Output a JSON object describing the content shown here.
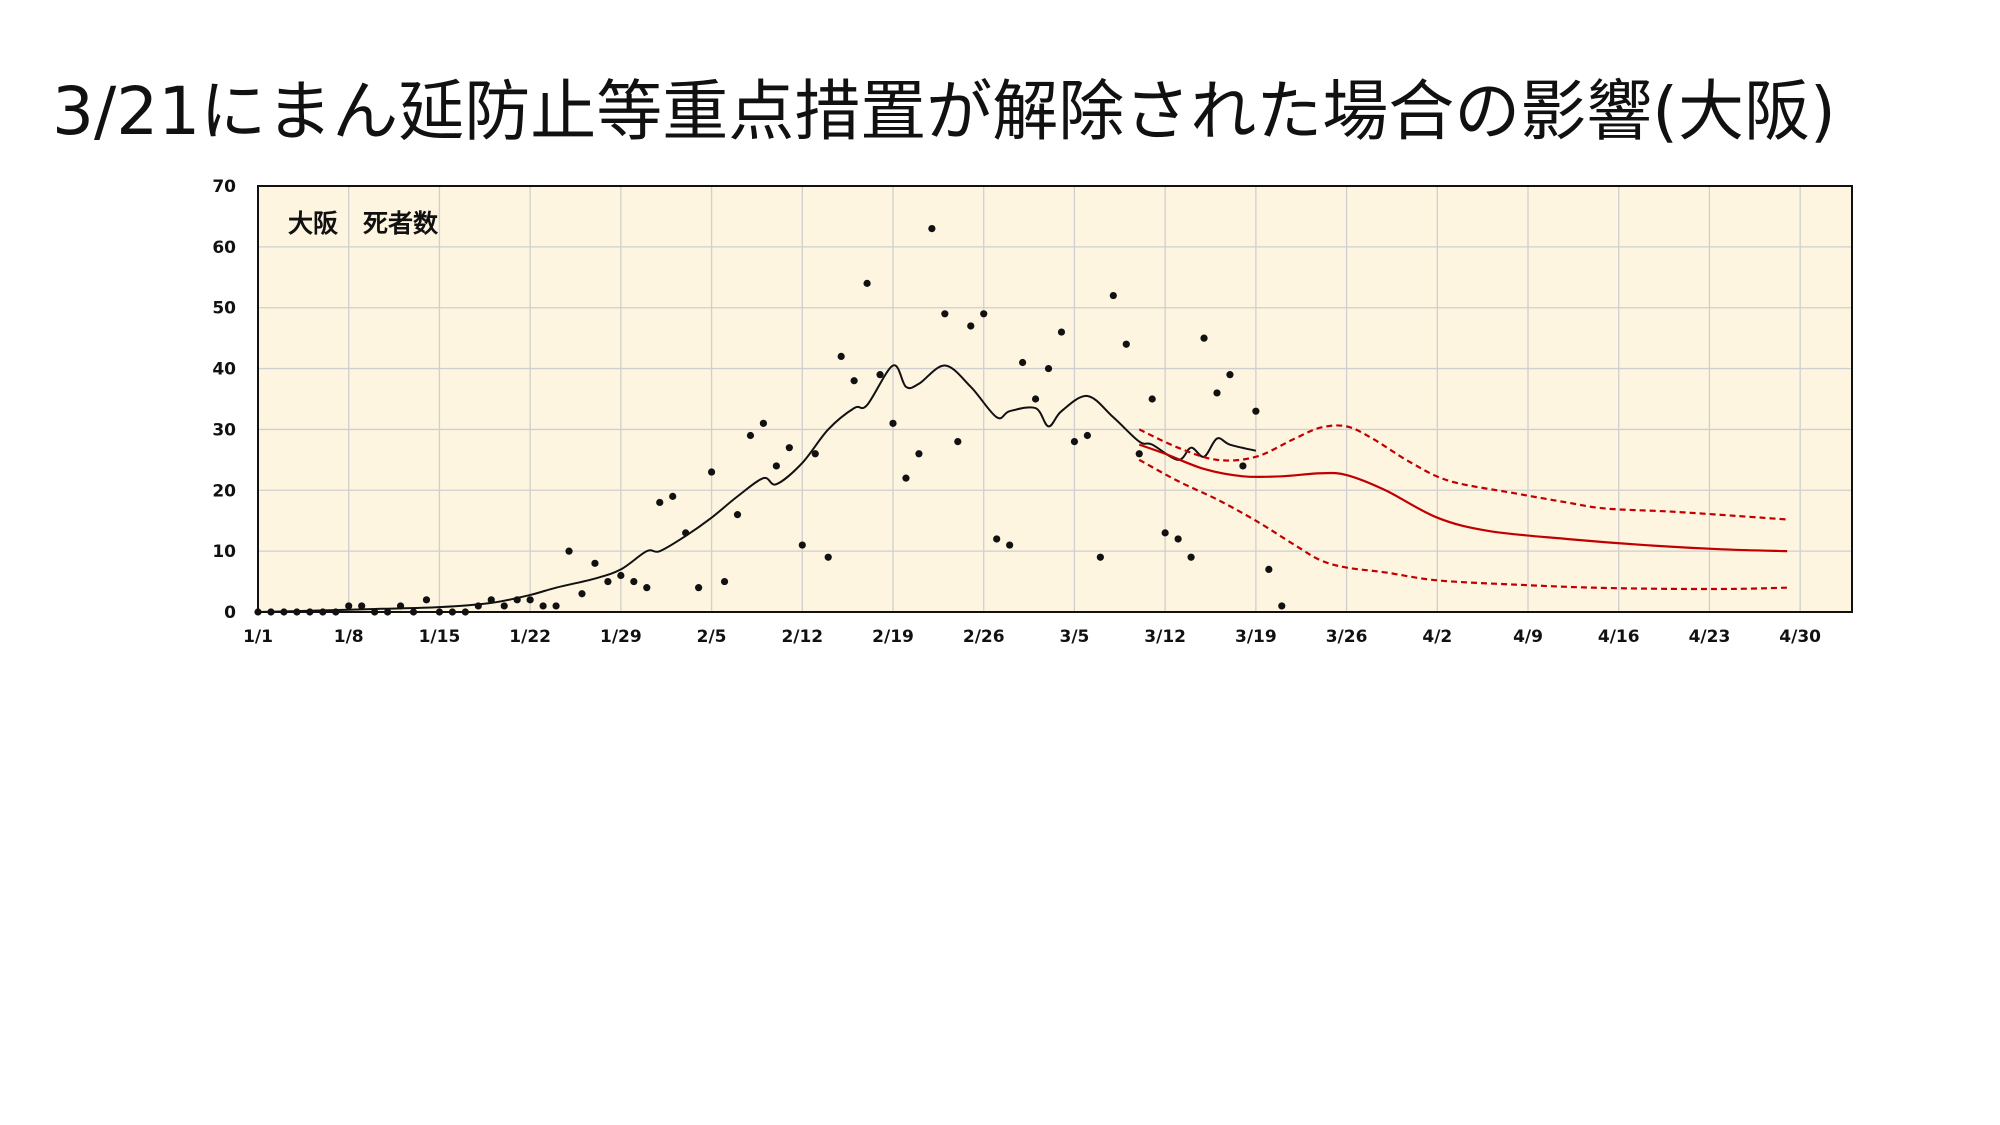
{
  "title": "3/21にまん延防止等重点措置が解除された場合の影響(大阪)",
  "chart_data": {
    "type": "scatter",
    "title": "",
    "inset_label": "大阪　死者数",
    "xlabel": "",
    "ylabel": "",
    "x_range": [
      "2021-01-01",
      "2021-05-04"
    ],
    "ylim": [
      0,
      70
    ],
    "y_ticks": [
      0,
      10,
      20,
      30,
      40,
      50,
      60,
      70
    ],
    "x_tick_labels": [
      "1/1",
      "1/8",
      "1/15",
      "1/22",
      "1/29",
      "2/5",
      "2/12",
      "2/19",
      "2/26",
      "3/5",
      "3/12",
      "3/19",
      "3/26",
      "4/2",
      "4/9",
      "4/16",
      "4/23",
      "4/30"
    ],
    "x_tick_dates": [
      "2021-01-01",
      "2021-01-08",
      "2021-01-15",
      "2021-01-22",
      "2021-01-29",
      "2021-02-05",
      "2021-02-12",
      "2021-02-19",
      "2021-02-26",
      "2021-03-05",
      "2021-03-12",
      "2021-03-19",
      "2021-03-26",
      "2021-04-02",
      "2021-04-09",
      "2021-04-16",
      "2021-04-23",
      "2021-04-30"
    ],
    "grid": true,
    "colors": {
      "background": "#fdf5e0",
      "observed": "#111111",
      "projection": "#c00000",
      "grid": "#cfcfcf"
    },
    "series": [
      {
        "kind": "points",
        "x": [
          "2021-01-01",
          "2021-01-02",
          "2021-01-03",
          "2021-01-04",
          "2021-01-05",
          "2021-01-06",
          "2021-01-07",
          "2021-01-08",
          "2021-01-09",
          "2021-01-10",
          "2021-01-11",
          "2021-01-12",
          "2021-01-13",
          "2021-01-14",
          "2021-01-15",
          "2021-01-16",
          "2021-01-17",
          "2021-01-18",
          "2021-01-19",
          "2021-01-20",
          "2021-01-21",
          "2021-01-22",
          "2021-01-23",
          "2021-01-24",
          "2021-01-25",
          "2021-01-26",
          "2021-01-27",
          "2021-01-28",
          "2021-01-29",
          "2021-01-30",
          "2021-01-31",
          "2021-02-01",
          "2021-02-02",
          "2021-02-03",
          "2021-02-04",
          "2021-02-05",
          "2021-02-06",
          "2021-02-07",
          "2021-02-08",
          "2021-02-09",
          "2021-02-10",
          "2021-02-11",
          "2021-02-12",
          "2021-02-13",
          "2021-02-14",
          "2021-02-15",
          "2021-02-16",
          "2021-02-17",
          "2021-02-18",
          "2021-02-19",
          "2021-02-20",
          "2021-02-21",
          "2021-02-22",
          "2021-02-23",
          "2021-02-24",
          "2021-02-25",
          "2021-02-26",
          "2021-02-27",
          "2021-02-28",
          "2021-03-01",
          "2021-03-02",
          "2021-03-03",
          "2021-03-04",
          "2021-03-05",
          "2021-03-06",
          "2021-03-07",
          "2021-03-08",
          "2021-03-09",
          "2021-03-10",
          "2021-03-11",
          "2021-03-12",
          "2021-03-13",
          "2021-03-14",
          "2021-03-15",
          "2021-03-16",
          "2021-03-17",
          "2021-03-18",
          "2021-03-19",
          "2021-03-20",
          "2021-03-21"
        ],
        "y": [
          0,
          0,
          0,
          0,
          0,
          0,
          0,
          1,
          1,
          0,
          0,
          1,
          0,
          2,
          0,
          0,
          0,
          1,
          2,
          1,
          2,
          2,
          1,
          1,
          10,
          3,
          8,
          5,
          6,
          5,
          4,
          18,
          19,
          13,
          4,
          23,
          5,
          16,
          29,
          31,
          24,
          27,
          11,
          26,
          9,
          42,
          38,
          54,
          39,
          31,
          22,
          26,
          63,
          49,
          28,
          47,
          49,
          12,
          11,
          41,
          35,
          40,
          46,
          28,
          29,
          9,
          52,
          44,
          26,
          35,
          13,
          12,
          9,
          45,
          36,
          39,
          24,
          33,
          7,
          1
        ]
      },
      {
        "kind": "line",
        "style": "solid",
        "color": "#111111",
        "x": [
          "2021-01-01",
          "2021-01-05",
          "2021-01-10",
          "2021-01-15",
          "2021-01-19",
          "2021-01-22",
          "2021-01-24",
          "2021-01-27",
          "2021-01-29",
          "2021-01-31",
          "2021-02-01",
          "2021-02-03",
          "2021-02-05",
          "2021-02-07",
          "2021-02-09",
          "2021-02-10",
          "2021-02-12",
          "2021-02-14",
          "2021-02-16",
          "2021-02-17",
          "2021-02-19",
          "2021-02-20",
          "2021-02-21",
          "2021-02-23",
          "2021-02-25",
          "2021-02-27",
          "2021-02-28",
          "2021-03-02",
          "2021-03-03",
          "2021-03-04",
          "2021-03-06",
          "2021-03-08",
          "2021-03-10",
          "2021-03-11",
          "2021-03-13",
          "2021-03-14",
          "2021-03-15",
          "2021-03-16",
          "2021-03-17",
          "2021-03-19"
        ],
        "y": [
          0,
          0.2,
          0.5,
          0.8,
          1.5,
          2.8,
          4.0,
          5.5,
          7.0,
          10.0,
          10.0,
          12.5,
          15.5,
          19.0,
          22.0,
          21.0,
          24.5,
          30.0,
          33.5,
          34.0,
          40.5,
          37.0,
          37.5,
          40.5,
          37.0,
          32.0,
          33.0,
          33.5,
          30.5,
          33.0,
          35.5,
          32.0,
          28.0,
          27.5,
          25.0,
          27.0,
          25.5,
          28.5,
          27.5,
          26.5
        ]
      },
      {
        "kind": "line",
        "style": "solid",
        "color": "#c00000",
        "x": [
          "2021-03-10",
          "2021-03-12",
          "2021-03-15",
          "2021-03-18",
          "2021-03-21",
          "2021-03-24",
          "2021-03-26",
          "2021-03-29",
          "2021-04-02",
          "2021-04-06",
          "2021-04-12",
          "2021-04-18",
          "2021-04-24",
          "2021-04-29"
        ],
        "y": [
          27.5,
          26.0,
          23.5,
          22.3,
          22.3,
          22.8,
          22.5,
          20.0,
          15.5,
          13.3,
          12.0,
          11.0,
          10.3,
          10.0
        ]
      },
      {
        "kind": "line",
        "style": "dashed",
        "color": "#c00000",
        "x": [
          "2021-03-10",
          "2021-03-13",
          "2021-03-16",
          "2021-03-19",
          "2021-03-22",
          "2021-03-24",
          "2021-03-26",
          "2021-03-28",
          "2021-03-31",
          "2021-04-03",
          "2021-04-08",
          "2021-04-12",
          "2021-04-15",
          "2021-04-20",
          "2021-04-25",
          "2021-04-29"
        ],
        "y": [
          30.0,
          27.0,
          25.0,
          25.5,
          28.5,
          30.3,
          30.5,
          28.5,
          24.5,
          21.5,
          19.5,
          18.0,
          17.0,
          16.5,
          15.8,
          15.2
        ]
      },
      {
        "kind": "line",
        "style": "dashed",
        "color": "#c00000",
        "x": [
          "2021-03-10",
          "2021-03-13",
          "2021-03-16",
          "2021-03-19",
          "2021-03-22",
          "2021-03-24",
          "2021-03-26",
          "2021-03-29",
          "2021-04-02",
          "2021-04-08",
          "2021-04-14",
          "2021-04-20",
          "2021-04-25",
          "2021-04-29"
        ],
        "y": [
          25.0,
          21.5,
          18.5,
          15.0,
          11.0,
          8.5,
          7.3,
          6.5,
          5.2,
          4.5,
          4.0,
          3.8,
          3.8,
          4.0
        ]
      }
    ]
  }
}
